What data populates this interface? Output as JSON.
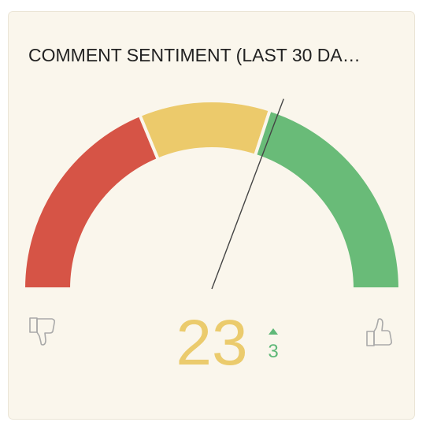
{
  "chart_data": {
    "type": "gauge",
    "title": "COMMENT SENTIMENT (LAST 30 DA…",
    "value": 23,
    "value_color": "#ebcb6d",
    "change": 3,
    "change_direction": "up",
    "change_color": "#5fb878",
    "ylim": [
      -100,
      100
    ],
    "bands": [
      {
        "from": -100,
        "to": -25,
        "color": "#d65446"
      },
      {
        "from": -25,
        "to": 20,
        "color": "#ecca6b"
      },
      {
        "from": 20,
        "to": 100,
        "color": "#69bb78"
      }
    ],
    "needle_color": "#444444"
  }
}
